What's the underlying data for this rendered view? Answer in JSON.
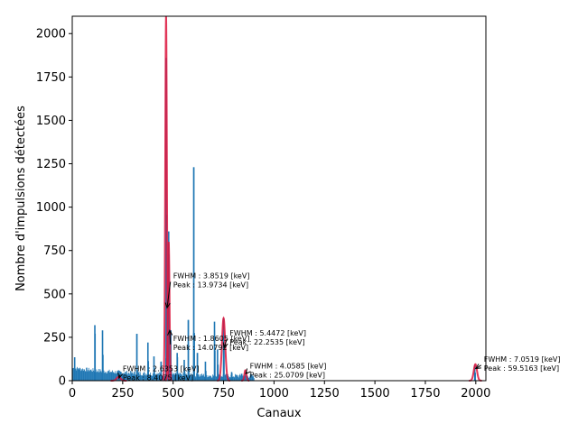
{
  "chart_data": {
    "type": "bar",
    "title": "",
    "xlabel": "Canaux",
    "ylabel": "Nombre d'impulsions détectées",
    "xlim": [
      0,
      2050
    ],
    "ylim": [
      0,
      2100
    ],
    "x_ticks": [
      0,
      250,
      500,
      750,
      1000,
      1250,
      1500,
      1750,
      2000
    ],
    "y_ticks": [
      0,
      250,
      500,
      750,
      1000,
      1250,
      1500,
      1750,
      2000
    ],
    "grid": false,
    "colors": {
      "histogram": "#1f77b4",
      "fit": "#dc143c"
    },
    "histogram_peaks": [
      {
        "x": 12,
        "y": 135
      },
      {
        "x": 30,
        "y": 70
      },
      {
        "x": 112,
        "y": 320
      },
      {
        "x": 150,
        "y": 290
      },
      {
        "x": 196,
        "y": 40
      },
      {
        "x": 235,
        "y": 30
      },
      {
        "x": 320,
        "y": 270
      },
      {
        "x": 375,
        "y": 220
      },
      {
        "x": 405,
        "y": 140
      },
      {
        "x": 440,
        "y": 110
      },
      {
        "x": 465,
        "y": 1860
      },
      {
        "x": 478,
        "y": 860
      },
      {
        "x": 488,
        "y": 290
      },
      {
        "x": 520,
        "y": 160
      },
      {
        "x": 555,
        "y": 120
      },
      {
        "x": 575,
        "y": 350
      },
      {
        "x": 602,
        "y": 1230
      },
      {
        "x": 620,
        "y": 160
      },
      {
        "x": 660,
        "y": 110
      },
      {
        "x": 705,
        "y": 340
      },
      {
        "x": 720,
        "y": 180
      },
      {
        "x": 750,
        "y": 360
      },
      {
        "x": 790,
        "y": 50
      },
      {
        "x": 840,
        "y": 40
      },
      {
        "x": 1995,
        "y": 90
      }
    ],
    "fit_peaks": [
      {
        "mu": 230,
        "amp": 22,
        "sigma": 10
      },
      {
        "mu": 465,
        "amp": 2100,
        "sigma": 4
      },
      {
        "mu": 478,
        "amp": 800,
        "sigma": 4
      },
      {
        "mu": 750,
        "amp": 360,
        "sigma": 8
      },
      {
        "mu": 858,
        "amp": 60,
        "sigma": 5
      },
      {
        "mu": 1998,
        "amp": 95,
        "sigma": 8
      }
    ],
    "annotations": [
      {
        "line1": "FWHM : 3.8519 [keV]",
        "line2": " Peak : 13.9734 [keV]",
        "arrow_to_x": 470,
        "arrow_to_y": 420,
        "text_x": 500,
        "text_y": 590
      },
      {
        "line1": "FWHM : 1.8605 [keV]",
        "line2": " Peak : 14.0792 [keV]",
        "arrow_to_x": 483,
        "arrow_to_y": 290,
        "text_x": 500,
        "text_y": 230
      },
      {
        "line1": "FWHM : 5.4472 [keV]",
        "line2": " Peak : 22.2535 [keV]",
        "arrow_to_x": 752,
        "arrow_to_y": 190,
        "text_x": 780,
        "text_y": 260
      },
      {
        "line1": "FWHM : 4.0585 [keV]",
        "line2": " Peak : 25.0709 [keV]",
        "arrow_to_x": 860,
        "arrow_to_y": 40,
        "text_x": 880,
        "text_y": 70
      },
      {
        "line1": "FWHM : 2.6353 [keV]",
        "line2": " Peak : 8.4075 [keV]",
        "arrow_to_x": 232,
        "arrow_to_y": 15,
        "text_x": 250,
        "text_y": 55
      },
      {
        "line1": "FWHM : 7.0519 [keV]",
        "line2": " Peak : 59.5163 [keV]",
        "arrow_to_x": 2000,
        "arrow_to_y": 70,
        "text_x": 2040,
        "text_y": 110
      }
    ]
  }
}
